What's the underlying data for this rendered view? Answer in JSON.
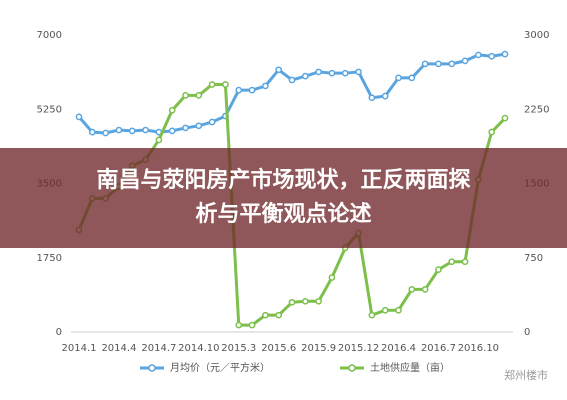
{
  "chart_data": {
    "type": "line",
    "title": "南昌与荥阳房产市场现状，正反两面探析与平衡观点论述",
    "watermark": "郑州楼市",
    "categories": [
      "2014.1",
      null,
      null,
      "2014.4",
      null,
      null,
      "2014.7",
      null,
      null,
      "2014.10",
      null,
      null,
      "2015.3",
      null,
      null,
      "2015.6",
      null,
      null,
      "2015.9",
      null,
      null,
      "2015.12",
      null,
      null,
      "2016.4",
      null,
      null,
      "2016.7",
      null,
      null,
      "2016.10",
      null,
      null
    ],
    "series": [
      {
        "name": "月均价（元／平方米）",
        "color": "#5aa5e0",
        "axis": "y",
        "values": [
          5070,
          4710,
          4690,
          4760,
          4740,
          4760,
          4710,
          4740,
          4810,
          4860,
          4950,
          5090,
          5700,
          5700,
          5800,
          6180,
          5940,
          6030,
          6130,
          6100,
          6100,
          6130,
          5520,
          5560,
          5990,
          5990,
          6320,
          6320,
          6320,
          6390,
          6530,
          6500,
          6550
        ]
      },
      {
        "name": "土地供应量（亩）",
        "color": "#7cbf4a",
        "axis": "y2",
        "values": [
          1030,
          1350,
          1350,
          1470,
          1680,
          1740,
          1940,
          2240,
          2390,
          2390,
          2500,
          2500,
          70,
          70,
          170,
          170,
          300,
          310,
          310,
          550,
          850,
          1000,
          170,
          220,
          220,
          430,
          430,
          630,
          710,
          710,
          1540,
          2020,
          2160
        ]
      }
    ],
    "ylim": [
      0,
      7000
    ],
    "yticks": [
      0,
      1750,
      3500,
      5250,
      7000
    ],
    "y2lim": [
      0,
      3000
    ],
    "y2ticks": [
      0,
      750,
      1500,
      2250,
      3000
    ],
    "grid": false
  }
}
